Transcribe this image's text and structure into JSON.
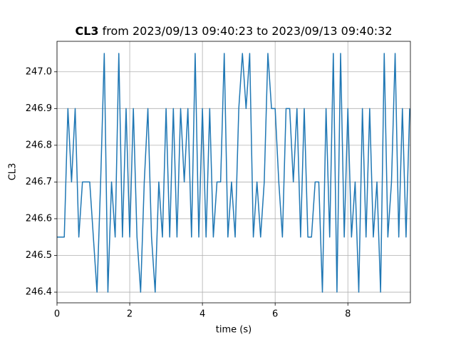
{
  "chart_data": {
    "type": "line",
    "title": {
      "bold": "CL3",
      "text": "from 2023/09/13 09:40:23 to 2023/09/13 09:40:32"
    },
    "x_label": "time (s)",
    "y_label": "CL3",
    "xlim": [
      0,
      9.72
    ],
    "ylim": [
      246.371,
      247.083
    ],
    "xticks": [
      0,
      2,
      4,
      6,
      8
    ],
    "yticks": [
      246.4,
      246.5,
      246.6,
      246.7,
      246.8,
      246.9,
      {
        "value": 247,
        "label": "247.0"
      }
    ],
    "grid": true,
    "x": [
      0,
      0.1,
      0.2,
      0.3,
      0.4,
      0.5,
      0.6,
      0.7,
      0.8,
      0.9,
      1,
      1.1,
      1.2,
      1.3,
      1.4,
      1.5,
      1.6,
      1.7,
      1.8,
      1.9,
      2,
      2.1,
      2.2,
      2.3,
      2.4,
      2.5,
      2.6,
      2.7,
      2.8,
      2.9,
      3,
      3.1,
      3.2,
      3.3,
      3.4,
      3.5,
      3.6,
      3.7,
      3.8,
      3.9,
      4,
      4.1,
      4.2,
      4.3,
      4.4,
      4.5,
      4.6,
      4.7,
      4.8,
      4.9,
      5,
      5.1,
      5.2,
      5.3,
      5.4,
      5.5,
      5.6,
      5.7,
      5.8,
      5.9,
      6,
      6.1,
      6.2,
      6.3,
      6.4,
      6.5,
      6.6,
      6.7,
      6.8,
      6.9,
      7,
      7.1,
      7.2,
      7.3,
      7.4,
      7.5,
      7.6,
      7.7,
      7.8,
      7.9,
      8,
      8.1,
      8.2,
      8.3,
      8.4,
      8.5,
      8.6,
      8.7,
      8.8,
      8.9,
      9,
      9.1,
      9.2,
      9.3,
      9.4,
      9.5,
      9.6,
      9.7
    ],
    "series": [
      {
        "name": "CL3",
        "color": "#1f77b4",
        "values": [
          246.55,
          246.55,
          246.55,
          246.9,
          246.7,
          246.9,
          246.55,
          246.7,
          246.7,
          246.7,
          246.55,
          246.4,
          246.7,
          247.05,
          246.4,
          246.7,
          246.55,
          247.05,
          246.55,
          246.9,
          246.55,
          246.9,
          246.55,
          246.4,
          246.7,
          246.9,
          246.55,
          246.4,
          246.7,
          246.55,
          246.9,
          246.55,
          246.9,
          246.55,
          246.9,
          246.7,
          246.9,
          246.55,
          247.05,
          246.55,
          246.9,
          246.55,
          246.9,
          246.55,
          246.7,
          246.7,
          247.05,
          246.55,
          246.7,
          246.55,
          246.9,
          247.05,
          246.9,
          247.05,
          246.55,
          246.7,
          246.55,
          246.7,
          247.05,
          246.9,
          246.9,
          246.7,
          246.55,
          246.9,
          246.9,
          246.7,
          246.9,
          246.55,
          246.9,
          246.55,
          246.55,
          246.7,
          246.7,
          246.4,
          246.9,
          246.55,
          247.05,
          246.4,
          247.05,
          246.55,
          246.9,
          246.55,
          246.7,
          246.4,
          246.9,
          246.55,
          246.9,
          246.55,
          246.7,
          246.4,
          247.05,
          246.55,
          246.7,
          247.05,
          246.55,
          246.9,
          246.55,
          246.9
        ]
      }
    ]
  }
}
